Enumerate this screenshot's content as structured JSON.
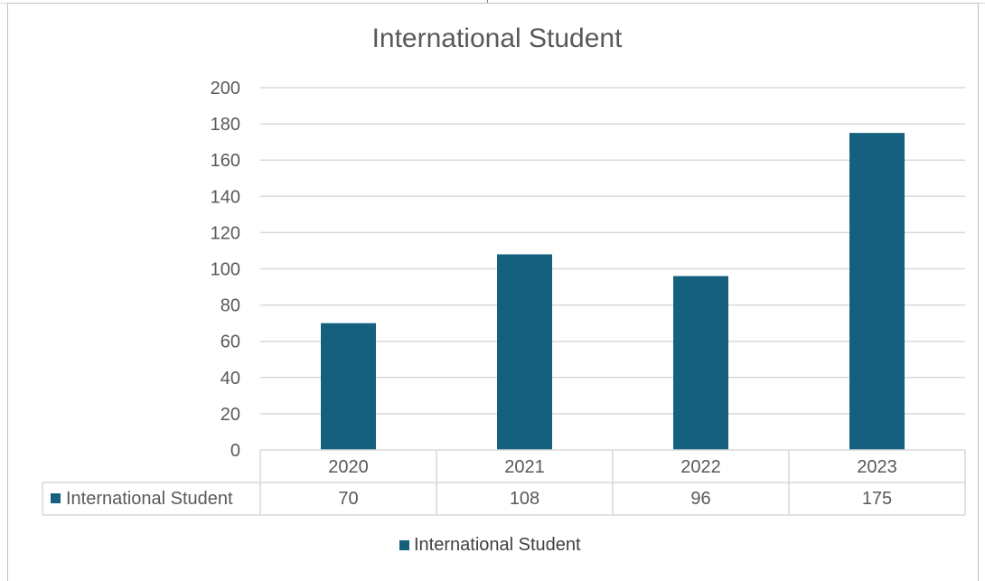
{
  "chart_data": {
    "type": "bar",
    "title": "International Student",
    "categories": [
      "2020",
      "2021",
      "2022",
      "2023"
    ],
    "series": [
      {
        "name": "International Student",
        "values": [
          70,
          108,
          96,
          175
        ],
        "color": "#15607f"
      }
    ],
    "ylim": [
      0,
      200
    ],
    "yticks": [
      0,
      20,
      40,
      60,
      80,
      100,
      120,
      140,
      160,
      180,
      200
    ],
    "grid": true,
    "data_table": true,
    "legend_position": "bottom"
  },
  "colors": {
    "bar": "#15607f",
    "grid": "#d9d9d9",
    "text": "#595959"
  }
}
